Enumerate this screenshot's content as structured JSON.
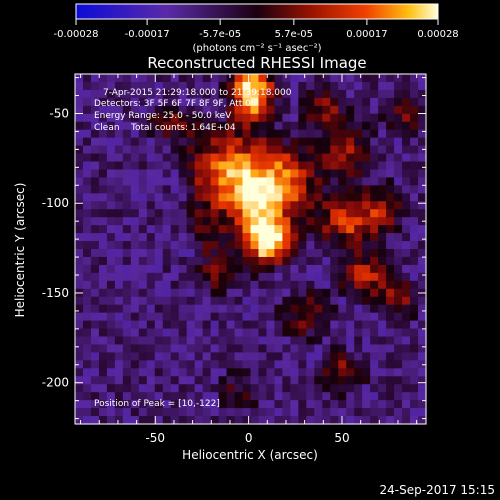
{
  "chart_data": {
    "type": "heatmap",
    "title": "Reconstructed RHESSI Image",
    "xlabel": "Heliocentric X (arcsec)",
    "ylabel": "Heliocentric Y (arcsec)",
    "xlim": [
      -93,
      95
    ],
    "ylim": [
      -223,
      -28
    ],
    "x_ticks": [
      -50,
      0,
      50
    ],
    "y_ticks": [
      -50,
      -100,
      -150,
      -200
    ],
    "colorbar": {
      "ticks": [
        "-0.00028",
        "-0.00017",
        "-5.7e-05",
        "5.7e-05",
        "0.00017",
        "0.00028"
      ],
      "units": "(photons cm⁻² s⁻¹ asec⁻²)",
      "range": [
        -0.00028,
        0.00028
      ]
    },
    "annotations": {
      "time": "7-Apr-2015 21:29:18.000 to 21:39:18.000",
      "detectors": "Detectors: 3F 5F 6F 7F 8F 9F, Att 0",
      "energy": "Energy Range: 25.0 - 50.0 keV",
      "method": "Clean    Total counts: 1.64E+04",
      "peak": "Position of Peak = [10,-122]"
    },
    "peak_position": [
      10,
      -122
    ],
    "footer_date": "24-Sep-2017 15:15",
    "sources": [
      {
        "x": 10,
        "y": -121,
        "amp": 1.0,
        "sx": 9,
        "sy": 9
      },
      {
        "x": 2,
        "y": -38,
        "amp": 0.95,
        "sx": 8,
        "sy": 11
      },
      {
        "x": -8,
        "y": -82,
        "amp": 0.75,
        "sx": 16,
        "sy": 14
      },
      {
        "x": 5,
        "y": -100,
        "amp": 0.55,
        "sx": 10,
        "sy": 10
      },
      {
        "x": 22,
        "y": -88,
        "amp": 0.5,
        "sx": 12,
        "sy": 14
      },
      {
        "x": 55,
        "y": -110,
        "amp": 0.55,
        "sx": 13,
        "sy": 10
      },
      {
        "x": 62,
        "y": -140,
        "amp": 0.45,
        "sx": 10,
        "sy": 9
      },
      {
        "x": 52,
        "y": -70,
        "amp": 0.4,
        "sx": 10,
        "sy": 12
      },
      {
        "x": 40,
        "y": -45,
        "amp": 0.35,
        "sx": 9,
        "sy": 9
      },
      {
        "x": 50,
        "y": -195,
        "amp": 0.4,
        "sx": 10,
        "sy": 9
      },
      {
        "x": 30,
        "y": -162,
        "amp": 0.35,
        "sx": 11,
        "sy": 10
      },
      {
        "x": 85,
        "y": -50,
        "amp": 0.35,
        "sx": 9,
        "sy": 10
      },
      {
        "x": 80,
        "y": -155,
        "amp": 0.35,
        "sx": 9,
        "sy": 9
      },
      {
        "x": -15,
        "y": -140,
        "amp": 0.3,
        "sx": 10,
        "sy": 8
      },
      {
        "x": -40,
        "y": -55,
        "amp": 0.3,
        "sx": 12,
        "sy": 8
      },
      {
        "x": -5,
        "y": -205,
        "amp": 0.25,
        "sx": 10,
        "sy": 10
      },
      {
        "x": 75,
        "y": -100,
        "amp": 0.3,
        "sx": 9,
        "sy": 9
      },
      {
        "x": -20,
        "y": -115,
        "amp": 0.3,
        "sx": 8,
        "sy": 12
      }
    ]
  }
}
